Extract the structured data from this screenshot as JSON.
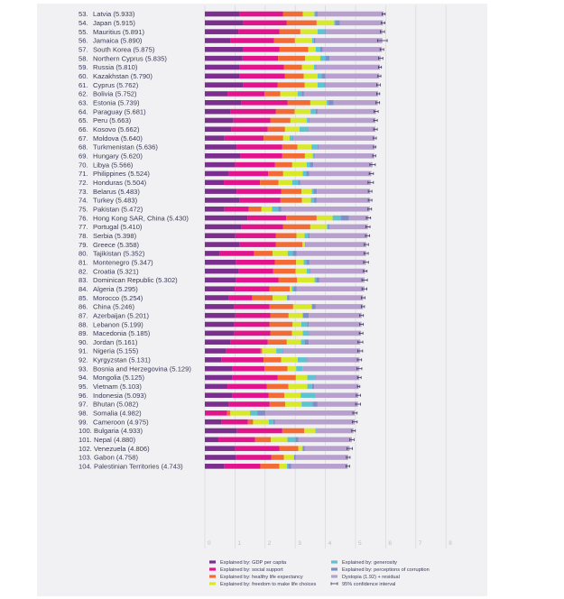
{
  "chart_data": {
    "type": "bar",
    "orientation": "horizontal-stacked",
    "title": "",
    "xlabel": "",
    "ylabel": "",
    "xlim": [
      0,
      8
    ],
    "xticks": [
      "0",
      "1",
      "2",
      "3",
      "4",
      "5",
      "6",
      "7",
      "8"
    ],
    "grid": true,
    "legend_position": "bottom",
    "components": [
      "gdp",
      "social",
      "health",
      "freedom",
      "generosity",
      "corruption",
      "residual"
    ],
    "colors": {
      "gdp": "#7b2f8c",
      "social": "#e2148c",
      "health": "#f26b34",
      "freedom": "#d8e82a",
      "generosity": "#5ec2d0",
      "corruption": "#7f8ec8",
      "residual": "#b7a0cd",
      "ci": "#3a3a55",
      "grid": "#d6d6de"
    },
    "legend": [
      {
        "key": "gdp",
        "label": "Explained by: GDP per capita"
      },
      {
        "key": "social",
        "label": "Explained by: social support"
      },
      {
        "key": "health",
        "label": "Explained by: healthy life expectancy"
      },
      {
        "key": "freedom",
        "label": "Explained by: freedom to make life choices"
      },
      {
        "key": "generosity",
        "label": "Explained by: generosity"
      },
      {
        "key": "corruption",
        "label": "Explained by: perceptions of corruption"
      },
      {
        "key": "residual",
        "label": "Dystopia (1.92) + residual"
      },
      {
        "key": "ci",
        "label": "95% confidence interval"
      }
    ],
    "rows": [
      {
        "rank": 53,
        "country": "Latvia",
        "score": 5.933,
        "gdp": 1.15,
        "social": 1.45,
        "health": 0.65,
        "freedom": 0.38,
        "generosity": 0.04,
        "corruption": 0.07,
        "ci": 0.05
      },
      {
        "rank": 54,
        "country": "Japan",
        "score": 5.915,
        "gdp": 1.27,
        "social": 1.45,
        "health": 0.99,
        "freedom": 0.58,
        "generosity": 0.04,
        "corruption": 0.15,
        "ci": 0.06
      },
      {
        "rank": 55,
        "country": "Mauritius",
        "score": 5.891,
        "gdp": 1.11,
        "social": 1.36,
        "health": 0.7,
        "freedom": 0.57,
        "generosity": 0.25,
        "corruption": 0.03,
        "ci": 0.07
      },
      {
        "rank": 56,
        "country": "Jamaica",
        "score": 5.89,
        "gdp": 0.85,
        "social": 1.44,
        "health": 0.7,
        "freedom": 0.57,
        "generosity": 0.06,
        "corruption": 0.05,
        "ci": 0.16
      },
      {
        "rank": 57,
        "country": "South Korea",
        "score": 5.875,
        "gdp": 1.27,
        "social": 1.2,
        "health": 0.96,
        "freedom": 0.25,
        "generosity": 0.15,
        "corruption": 0.08,
        "ci": 0.06
      },
      {
        "rank": 58,
        "country": "Northern Cyprus",
        "score": 5.835,
        "gdp": 1.25,
        "social": 1.18,
        "health": 0.9,
        "freedom": 0.5,
        "generosity": 0.17,
        "corruption": 0.14,
        "ci": 0.07
      },
      {
        "rank": 59,
        "country": "Russia",
        "score": 5.81,
        "gdp": 1.15,
        "social": 1.47,
        "health": 0.6,
        "freedom": 0.4,
        "generosity": 0.05,
        "corruption": 0.03,
        "ci": 0.05
      },
      {
        "rank": 60,
        "country": "Kazakhstan",
        "score": 5.79,
        "gdp": 1.15,
        "social": 1.5,
        "health": 0.63,
        "freedom": 0.46,
        "generosity": 0.13,
        "corruption": 0.13,
        "ci": 0.05
      },
      {
        "rank": 61,
        "country": "Cyprus",
        "score": 5.762,
        "gdp": 1.26,
        "social": 1.15,
        "health": 0.9,
        "freedom": 0.43,
        "generosity": 0.22,
        "corruption": 0.04,
        "ci": 0.06
      },
      {
        "rank": 62,
        "country": "Bolivia",
        "score": 5.752,
        "gdp": 0.75,
        "social": 1.23,
        "health": 0.52,
        "freedom": 0.58,
        "generosity": 0.13,
        "corruption": 0.08,
        "ci": 0.05
      },
      {
        "rank": 63,
        "country": "Estonia",
        "score": 5.739,
        "gdp": 1.2,
        "social": 1.54,
        "health": 0.76,
        "freedom": 0.54,
        "generosity": 0.06,
        "corruption": 0.17,
        "ci": 0.06
      },
      {
        "rank": 64,
        "country": "Paraguay",
        "score": 5.681,
        "gdp": 0.85,
        "social": 1.5,
        "health": 0.63,
        "freedom": 0.53,
        "generosity": 0.17,
        "corruption": 0.06,
        "ci": 0.07
      },
      {
        "rank": 65,
        "country": "Peru",
        "score": 5.663,
        "gdp": 0.95,
        "social": 1.23,
        "health": 0.66,
        "freedom": 0.54,
        "generosity": 0.06,
        "corruption": 0.03,
        "ci": 0.06
      },
      {
        "rank": 66,
        "country": "Kosovo",
        "score": 5.662,
        "gdp": 0.88,
        "social": 1.21,
        "health": 0.57,
        "freedom": 0.48,
        "generosity": 0.29,
        "corruption": 0.02,
        "ci": 0.06
      },
      {
        "rank": 67,
        "country": "Moldova",
        "score": 5.64,
        "gdp": 0.65,
        "social": 1.3,
        "health": 0.65,
        "freedom": 0.21,
        "generosity": 0.11,
        "corruption": 0.02,
        "ci": 0.05
      },
      {
        "rank": 68,
        "country": "Turkmenistan",
        "score": 5.636,
        "gdp": 1.05,
        "social": 1.52,
        "health": 0.5,
        "freedom": 0.47,
        "generosity": 0.2,
        "corruption": 0.03,
        "ci": 0.04
      },
      {
        "rank": 69,
        "country": "Hungary",
        "score": 5.62,
        "gdp": 1.18,
        "social": 1.39,
        "health": 0.75,
        "freedom": 0.26,
        "generosity": 0.05,
        "corruption": 0.03,
        "ci": 0.05
      },
      {
        "rank": 70,
        "country": "Libya",
        "score": 5.566,
        "gdp": 1.0,
        "social": 1.33,
        "health": 0.57,
        "freedom": 0.48,
        "generosity": 0.1,
        "corruption": 0.12,
        "ci": 0.09
      },
      {
        "rank": 71,
        "country": "Philippines",
        "score": 5.524,
        "gdp": 0.78,
        "social": 1.32,
        "health": 0.5,
        "freedom": 0.65,
        "generosity": 0.11,
        "corruption": 0.1,
        "ci": 0.07
      },
      {
        "rank": 72,
        "country": "Honduras",
        "score": 5.504,
        "gdp": 0.63,
        "social": 1.2,
        "health": 0.61,
        "freedom": 0.46,
        "generosity": 0.2,
        "corruption": 0.07,
        "ci": 0.09
      },
      {
        "rank": 73,
        "country": "Belarus",
        "score": 5.483,
        "gdp": 1.05,
        "social": 1.48,
        "health": 0.68,
        "freedom": 0.34,
        "generosity": 0.05,
        "corruption": 0.12,
        "ci": 0.06
      },
      {
        "rank": 74,
        "country": "Turkey",
        "score": 5.483,
        "gdp": 1.14,
        "social": 1.37,
        "health": 0.71,
        "freedom": 0.3,
        "generosity": 0.1,
        "corruption": 0.09,
        "ci": 0.06
      },
      {
        "rank": 75,
        "country": "Pakistan",
        "score": 5.472,
        "gdp": 0.65,
        "social": 0.81,
        "health": 0.42,
        "freedom": 0.35,
        "generosity": 0.21,
        "corruption": 0.09,
        "ci": 0.06
      },
      {
        "rank": 76,
        "country": "Hong Kong SAR, China",
        "score": 5.43,
        "gdp": 1.41,
        "social": 1.29,
        "health": 1.01,
        "freedom": 0.53,
        "generosity": 0.27,
        "corruption": 0.27,
        "ci": 0.07
      },
      {
        "rank": 77,
        "country": "Portugal",
        "score": 5.41,
        "gdp": 1.21,
        "social": 1.39,
        "health": 0.9,
        "freedom": 0.55,
        "generosity": 0.03,
        "corruption": 0.05,
        "ci": 0.07
      },
      {
        "rank": 78,
        "country": "Serbia",
        "score": 5.398,
        "gdp": 1.01,
        "social": 1.35,
        "health": 0.68,
        "freedom": 0.27,
        "generosity": 0.11,
        "corruption": 0.06,
        "ci": 0.07
      },
      {
        "rank": 79,
        "country": "Greece",
        "score": 5.358,
        "gdp": 1.16,
        "social": 1.2,
        "health": 0.88,
        "freedom": 0.08,
        "generosity": 0.0,
        "corruption": 0.02,
        "ci": 0.07
      },
      {
        "rank": 80,
        "country": "Tajikistan",
        "score": 5.352,
        "gdp": 0.5,
        "social": 1.13,
        "health": 0.62,
        "freedom": 0.5,
        "generosity": 0.17,
        "corruption": 0.13,
        "ci": 0.07
      },
      {
        "rank": 81,
        "country": "Montenegro",
        "score": 5.347,
        "gdp": 1.02,
        "social": 1.3,
        "health": 0.71,
        "freedom": 0.25,
        "generosity": 0.09,
        "corruption": 0.1,
        "ci": 0.08
      },
      {
        "rank": 82,
        "country": "Croatia",
        "score": 5.321,
        "gdp": 1.12,
        "social": 1.15,
        "health": 0.74,
        "freedom": 0.37,
        "generosity": 0.09,
        "corruption": 0.03,
        "ci": 0.06
      },
      {
        "rank": 83,
        "country": "Dominican Republic",
        "score": 5.302,
        "gdp": 1.02,
        "social": 1.42,
        "health": 0.62,
        "freedom": 0.58,
        "generosity": 0.06,
        "corruption": 0.1,
        "ci": 0.09
      },
      {
        "rank": 84,
        "country": "Algeria",
        "score": 5.295,
        "gdp": 0.99,
        "social": 1.15,
        "health": 0.68,
        "freedom": 0.07,
        "generosity": 0.06,
        "corruption": 0.1,
        "ci": 0.08
      },
      {
        "rank": 85,
        "country": "Morocco",
        "score": 5.254,
        "gdp": 0.79,
        "social": 0.78,
        "health": 0.68,
        "freedom": 0.47,
        "generosity": 0.02,
        "corruption": 0.06,
        "ci": 0.06
      },
      {
        "rank": 86,
        "country": "China",
        "score": 5.246,
        "gdp": 0.98,
        "social": 1.17,
        "health": 0.78,
        "freedom": 0.61,
        "generosity": 0.02,
        "corruption": 0.12,
        "ci": 0.05
      },
      {
        "rank": 87,
        "country": "Azerbaijan",
        "score": 5.201,
        "gdp": 1.01,
        "social": 1.17,
        "health": 0.6,
        "freedom": 0.46,
        "generosity": 0.02,
        "corruption": 0.19,
        "ci": 0.06
      },
      {
        "rank": 88,
        "country": "Lebanon",
        "score": 5.199,
        "gdp": 0.97,
        "social": 1.17,
        "health": 0.77,
        "freedom": 0.29,
        "generosity": 0.2,
        "corruption": 0.05,
        "ci": 0.06
      },
      {
        "rank": 89,
        "country": "Macedonia",
        "score": 5.185,
        "gdp": 0.97,
        "social": 1.21,
        "health": 0.71,
        "freedom": 0.36,
        "generosity": 0.2,
        "corruption": 0.02,
        "ci": 0.06
      },
      {
        "rank": 90,
        "country": "Jordan",
        "score": 5.161,
        "gdp": 0.85,
        "social": 1.24,
        "health": 0.63,
        "freedom": 0.47,
        "generosity": 0.12,
        "corruption": 0.14,
        "ci": 0.08
      },
      {
        "rank": 91,
        "country": "Nigeria",
        "score": 5.155,
        "gdp": 0.71,
        "social": 1.14,
        "health": 0.05,
        "freedom": 0.47,
        "generosity": 0.2,
        "corruption": 0.02,
        "ci": 0.08
      },
      {
        "rank": 92,
        "country": "Kyrgyzstan",
        "score": 5.131,
        "gdp": 0.55,
        "social": 1.4,
        "health": 0.58,
        "freedom": 0.55,
        "generosity": 0.3,
        "corruption": 0.02,
        "ci": 0.07
      },
      {
        "rank": 93,
        "country": "Bosnia and Herzegovina",
        "score": 5.129,
        "gdp": 0.9,
        "social": 1.08,
        "health": 0.76,
        "freedom": 0.29,
        "generosity": 0.21,
        "corruption": 0.0,
        "ci": 0.08
      },
      {
        "rank": 94,
        "country": "Mongolia",
        "score": 5.125,
        "gdp": 0.92,
        "social": 1.5,
        "health": 0.6,
        "freedom": 0.38,
        "generosity": 0.25,
        "corruption": 0.02,
        "ci": 0.06
      },
      {
        "rank": 95,
        "country": "Vietnam",
        "score": 5.103,
        "gdp": 0.75,
        "social": 1.31,
        "health": 0.71,
        "freedom": 0.63,
        "generosity": 0.16,
        "corruption": 0.07,
        "ci": 0.04
      },
      {
        "rank": 96,
        "country": "Indonesia",
        "score": 5.093,
        "gdp": 0.91,
        "social": 1.21,
        "health": 0.52,
        "freedom": 0.54,
        "generosity": 0.49,
        "corruption": 0.0,
        "ci": 0.07
      },
      {
        "rank": 97,
        "country": "Bhutan",
        "score": 5.082,
        "gdp": 0.8,
        "social": 1.35,
        "health": 0.52,
        "freedom": 0.54,
        "generosity": 0.36,
        "corruption": 0.17,
        "ci": 0.08
      },
      {
        "rank": 98,
        "country": "Somalia",
        "score": 4.982,
        "gdp": 0.0,
        "social": 0.74,
        "health": 0.1,
        "freedom": 0.66,
        "generosity": 0.24,
        "corruption": 0.27,
        "ci": 0.07
      },
      {
        "rank": 99,
        "country": "Cameroon",
        "score": 4.975,
        "gdp": 0.54,
        "social": 0.89,
        "health": 0.17,
        "freedom": 0.52,
        "generosity": 0.15,
        "corruption": 0.05,
        "ci": 0.08
      },
      {
        "rank": 100,
        "country": "Bulgaria",
        "score": 4.933,
        "gdp": 1.07,
        "social": 1.5,
        "health": 0.73,
        "freedom": 0.37,
        "generosity": 0.03,
        "corruption": 0.0,
        "ci": 0.06
      },
      {
        "rank": 101,
        "country": "Nepal",
        "score": 4.88,
        "gdp": 0.45,
        "social": 1.22,
        "health": 0.52,
        "freedom": 0.55,
        "generosity": 0.27,
        "corruption": 0.09,
        "ci": 0.07
      },
      {
        "rank": 102,
        "country": "Venezuela",
        "score": 4.806,
        "gdp": 1.0,
        "social": 1.47,
        "health": 0.63,
        "freedom": 0.13,
        "generosity": 0.03,
        "corruption": 0.06,
        "ci": 0.09
      },
      {
        "rank": 103,
        "country": "Gabon",
        "score": 4.758,
        "gdp": 1.02,
        "social": 1.19,
        "health": 0.41,
        "freedom": 0.34,
        "generosity": 0.0,
        "corruption": 0.06,
        "ci": 0.06
      },
      {
        "rank": 104,
        "country": "Palestinian Territories",
        "score": 4.743,
        "gdp": 0.65,
        "social": 1.19,
        "health": 0.63,
        "freedom": 0.25,
        "generosity": 0.05,
        "corruption": 0.09,
        "ci": 0.06
      }
    ]
  }
}
